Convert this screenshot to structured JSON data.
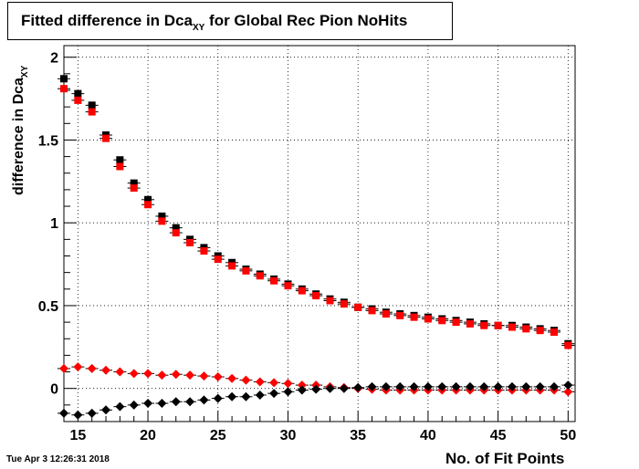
{
  "chart_data": {
    "type": "scatter",
    "title_main": "Fitted difference in Dca",
    "title_sub": "XY",
    "title_rest": " for Global Rec Pion NoHits",
    "ylabel_main": "difference in Dca",
    "ylabel_sub": "XY",
    "xlabel": "No. of Fit Points",
    "xlim": [
      14,
      50.5
    ],
    "ylim": [
      -0.2,
      2.07
    ],
    "x_ticks": [
      15,
      20,
      25,
      30,
      35,
      40,
      45,
      50
    ],
    "y_ticks": [
      0,
      0.5,
      1,
      1.5,
      2
    ],
    "y_tick_labels": [
      "0",
      "0.5",
      "1",
      "1.5",
      "2"
    ],
    "grid": true,
    "x": [
      14,
      15,
      16,
      17,
      18,
      19,
      20,
      21,
      22,
      23,
      24,
      25,
      26,
      27,
      28,
      29,
      30,
      31,
      32,
      33,
      34,
      35,
      36,
      37,
      38,
      39,
      40,
      41,
      42,
      43,
      44,
      45,
      46,
      47,
      48,
      49,
      50
    ],
    "series": [
      {
        "marker": "square",
        "color": "#000000",
        "values": [
          1.87,
          1.78,
          1.71,
          1.53,
          1.38,
          1.24,
          1.14,
          1.04,
          0.97,
          0.9,
          0.85,
          0.8,
          0.76,
          0.72,
          0.69,
          0.66,
          0.63,
          0.6,
          0.57,
          0.54,
          0.52,
          0.49,
          0.48,
          0.46,
          0.45,
          0.44,
          0.43,
          0.42,
          0.41,
          0.4,
          0.39,
          0.38,
          0.38,
          0.37,
          0.36,
          0.35,
          0.27
        ]
      },
      {
        "marker": "square",
        "color": "#ff0000",
        "values": [
          1.81,
          1.74,
          1.67,
          1.51,
          1.34,
          1.21,
          1.11,
          1.01,
          0.94,
          0.88,
          0.83,
          0.78,
          0.74,
          0.71,
          0.68,
          0.65,
          0.62,
          0.59,
          0.56,
          0.53,
          0.51,
          0.49,
          0.47,
          0.45,
          0.44,
          0.43,
          0.42,
          0.41,
          0.4,
          0.39,
          0.38,
          0.38,
          0.37,
          0.36,
          0.35,
          0.34,
          0.26
        ]
      },
      {
        "marker": "diamond",
        "color": "#ff0000",
        "values": [
          0.12,
          0.13,
          0.12,
          0.11,
          0.1,
          0.09,
          0.09,
          0.08,
          0.085,
          0.08,
          0.075,
          0.07,
          0.06,
          0.05,
          0.04,
          0.035,
          0.03,
          0.02,
          0.02,
          0.01,
          0.005,
          0.0,
          -0.005,
          -0.01,
          -0.01,
          -0.01,
          -0.01,
          -0.01,
          -0.01,
          -0.01,
          -0.01,
          -0.01,
          -0.01,
          -0.01,
          -0.01,
          -0.01,
          -0.02
        ]
      },
      {
        "marker": "diamond",
        "color": "#000000",
        "values": [
          -0.15,
          -0.16,
          -0.15,
          -0.13,
          -0.11,
          -0.1,
          -0.09,
          -0.09,
          -0.08,
          -0.08,
          -0.07,
          -0.06,
          -0.05,
          -0.05,
          -0.04,
          -0.03,
          -0.02,
          -0.01,
          -0.005,
          0.0,
          0.0,
          0.005,
          0.01,
          0.01,
          0.01,
          0.01,
          0.01,
          0.01,
          0.01,
          0.01,
          0.01,
          0.01,
          0.01,
          0.01,
          0.01,
          0.01,
          0.02
        ]
      }
    ]
  },
  "timestamp": "Tue Apr  3 12:26:31 2018"
}
